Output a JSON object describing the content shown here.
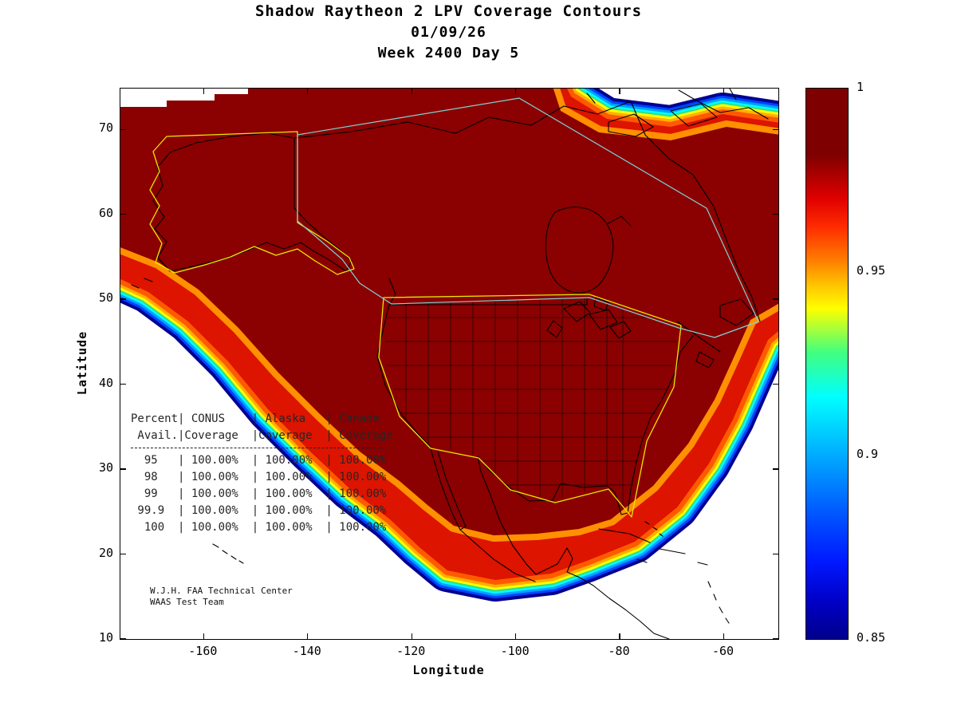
{
  "title": {
    "line1": "Shadow Raytheon 2 LPV Coverage Contours",
    "line2": "01/09/26",
    "line3": "Week 2400 Day 5"
  },
  "annotation": {
    "line1": "W.J.H. FAA Technical Center",
    "line2": "WAAS Test Team"
  },
  "chart_data": {
    "type": "heatmap",
    "variant": "filled-contour coverage map of North America",
    "title": "Shadow Raytheon 2 LPV Coverage Contours",
    "subtitle_date": "01/09/26",
    "subtitle_week": "Week 2400 Day 5",
    "xlabel": "Longitude",
    "ylabel": "Latitude",
    "xlim": [
      -176,
      -49.5
    ],
    "ylim": [
      10,
      74.8
    ],
    "xticks": [
      -160,
      -140,
      -120,
      -100,
      -80,
      -60
    ],
    "yticks": [
      10,
      20,
      30,
      40,
      50,
      60,
      70
    ],
    "grid": false,
    "zlim": [
      0.85,
      1.0
    ],
    "colorbar": {
      "min": 0.85,
      "max": 1.0,
      "ticks": [
        1,
        0.95,
        0.9,
        0.85
      ],
      "tick_labels": [
        "1",
        "0.95",
        "0.9",
        "0.85"
      ],
      "position": "right",
      "colormap": "jet-like, dark red = 1.0 at top, dark blue = 0.85 at bottom",
      "gradient_stops": [
        [
          "#7F0000",
          0
        ],
        [
          "#7F0000",
          0.12
        ],
        [
          "#E00000",
          0.2
        ],
        [
          "#FF2A00",
          0.25
        ],
        [
          "#FF7A00",
          0.31
        ],
        [
          "#FFC800",
          0.36
        ],
        [
          "#FFFF00",
          0.4
        ],
        [
          "#40FF80",
          0.48
        ],
        [
          "#00FFFF",
          0.56
        ],
        [
          "#00C8FF",
          0.63
        ],
        [
          "#0090FF",
          0.7
        ],
        [
          "#0050FF",
          0.78
        ],
        [
          "#0018FF",
          0.86
        ],
        [
          "#0000C8",
          0.93
        ],
        [
          "#00008B",
          1
        ]
      ]
    },
    "contour_band_colors": [
      "#000090",
      "#0044FF",
      "#00A0FF",
      "#00FFFF",
      "#30E080",
      "#FFFF00",
      "#FFB000",
      "#FF5A00",
      "#DC1400",
      "#FF9000",
      "#8B0000"
    ],
    "coverage_table": {
      "header_lines": [
        "Percent| CONUS    | Alaska   | Canada",
        " Avail.|Coverage  |Coverage  | Coverage"
      ],
      "columns": [
        "Percent Avail.",
        "CONUS Coverage",
        "Alaska Coverage",
        "Canada Coverage"
      ],
      "rows": [
        {
          "avail": "95",
          "conus": "100.00%",
          "alaska": "100.00%",
          "canada": "100.00%"
        },
        {
          "avail": "98",
          "conus": "100.00%",
          "alaska": "100.00%",
          "canada": "100.00%"
        },
        {
          "avail": "99",
          "conus": "100.00%",
          "alaska": "100.00%",
          "canada": "100.00%"
        },
        {
          "avail": "99.9",
          "conus": "100.00%",
          "alaska": "100.00%",
          "canada": "100.00%"
        },
        {
          "avail": "100",
          "conus": "100.00%",
          "alaska": "100.00%",
          "canada": "100.00%"
        }
      ]
    },
    "annotation": {
      "line1": "W.J.H. FAA Technical Center",
      "line2": "WAAS Test Team"
    },
    "map_overlays": [
      "North America coastlines (black)",
      "US state boundaries (black)",
      "CONUS service volume outline (yellow)",
      "Alaska service volume outline (yellow)",
      "Canada region outline (light blue)"
    ],
    "colors": {
      "fill_max_coverage": "#8B0000",
      "conus_outline": "#E8E800",
      "canada_outline": "#7FD4D4",
      "coastline": "#000000",
      "background": "#FFFFFF"
    }
  }
}
